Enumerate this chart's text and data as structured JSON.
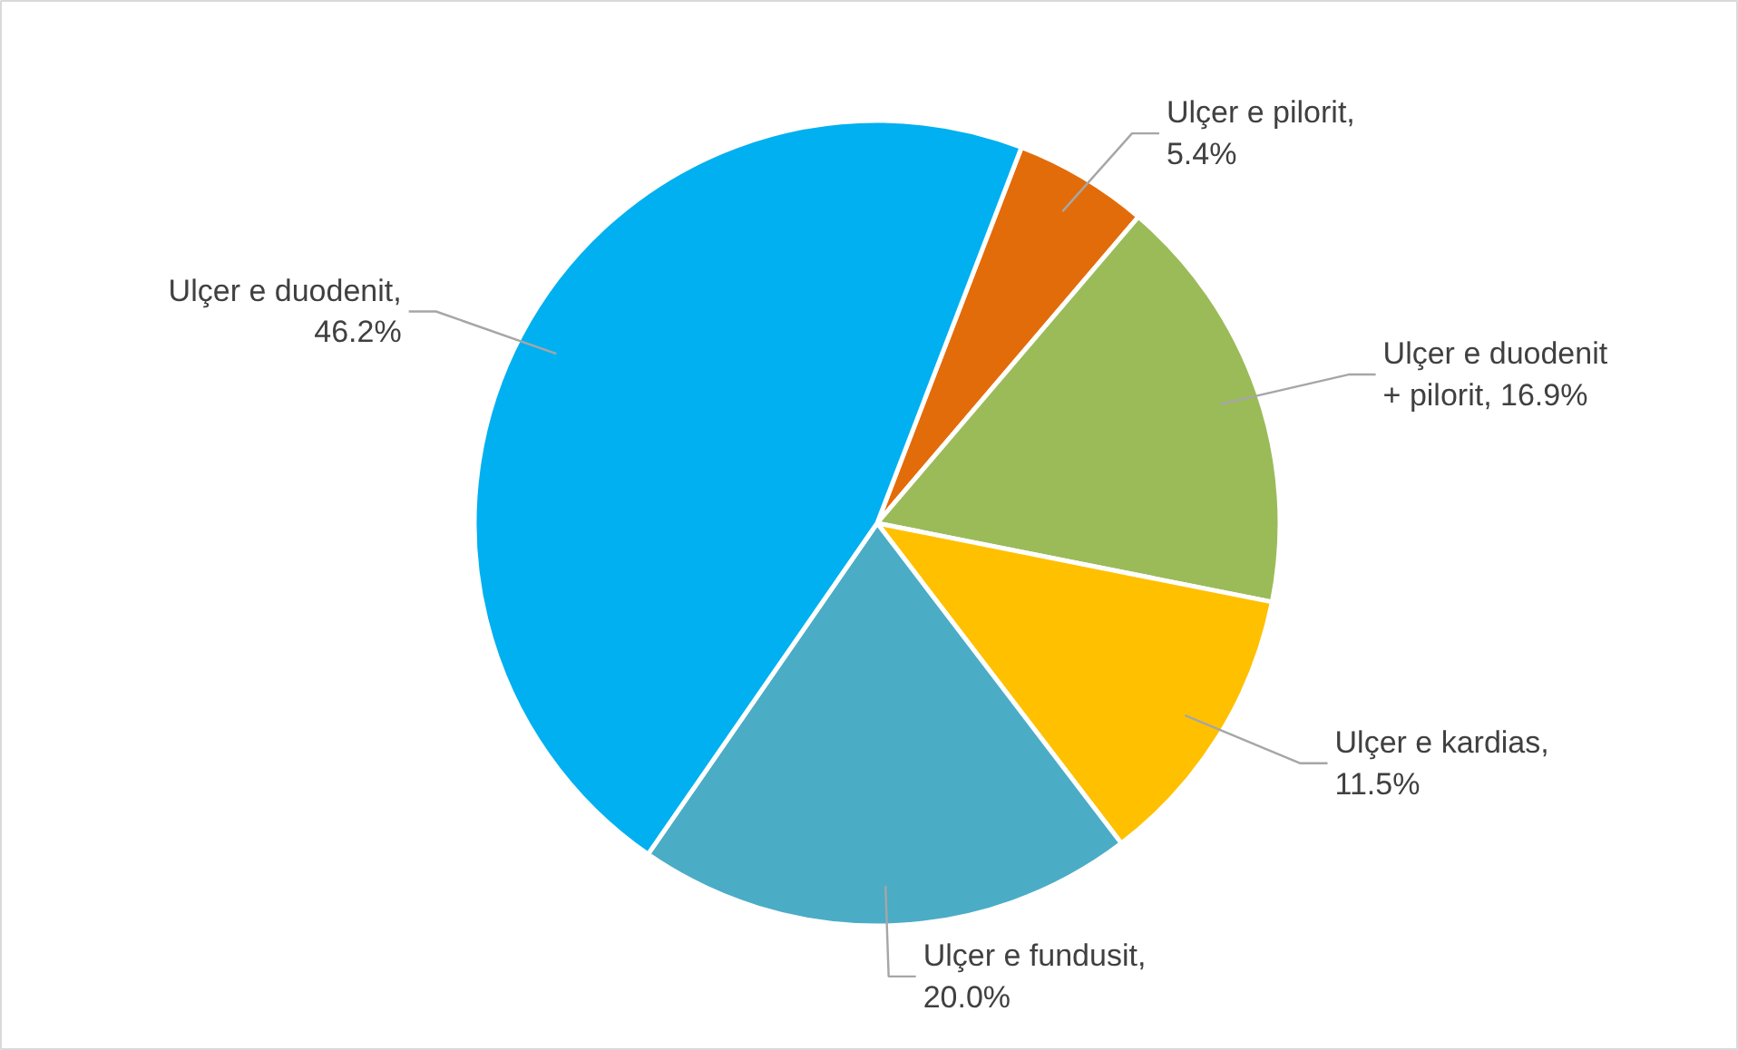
{
  "chart_data": {
    "type": "pie",
    "categories": [
      "Ulçer e pilorit",
      "Ulçer e duodenit + pilorit",
      "Ulçer e kardias",
      "Ulçer e fundusit",
      "Ulçer e duodenit"
    ],
    "value_labels": [
      ", 5.4%",
      ", 16.9%",
      ", 11.5%",
      ", 20.0%",
      ", 46.2%"
    ],
    "values": [
      5.4,
      16.9,
      11.5,
      20.0,
      46.2
    ],
    "colors": [
      "#e36c0a",
      "#9bbb59",
      "#ffc000",
      "#4bacc6",
      "#00b0f0"
    ]
  }
}
